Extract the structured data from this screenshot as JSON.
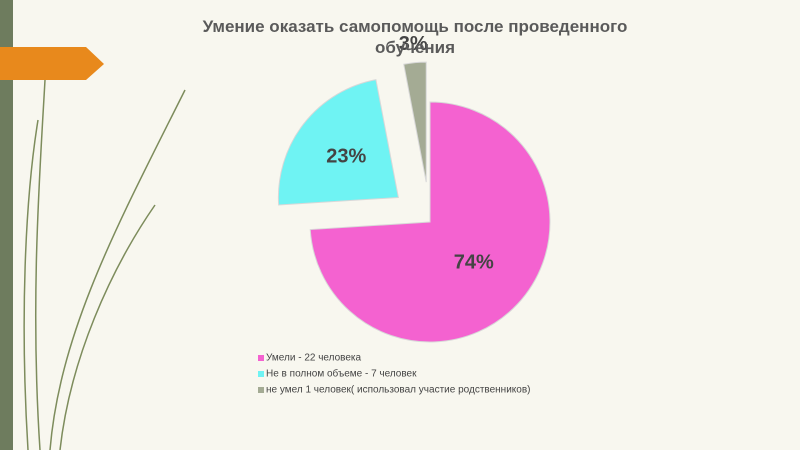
{
  "chart_data": {
    "type": "pie",
    "title": "Умение оказать самопомощь после проведенного обучения",
    "categories": [
      "Умели - 22 человека",
      "Не в полном  объеме - 7 человек",
      "не умел 1 человек( использовал участие родственников)"
    ],
    "values": [
      74,
      23,
      3
    ],
    "value_labels": [
      "74%",
      "23%",
      "3%"
    ],
    "colors": [
      "#f462d0",
      "#6ff3f3",
      "#a4ab94"
    ]
  }
}
